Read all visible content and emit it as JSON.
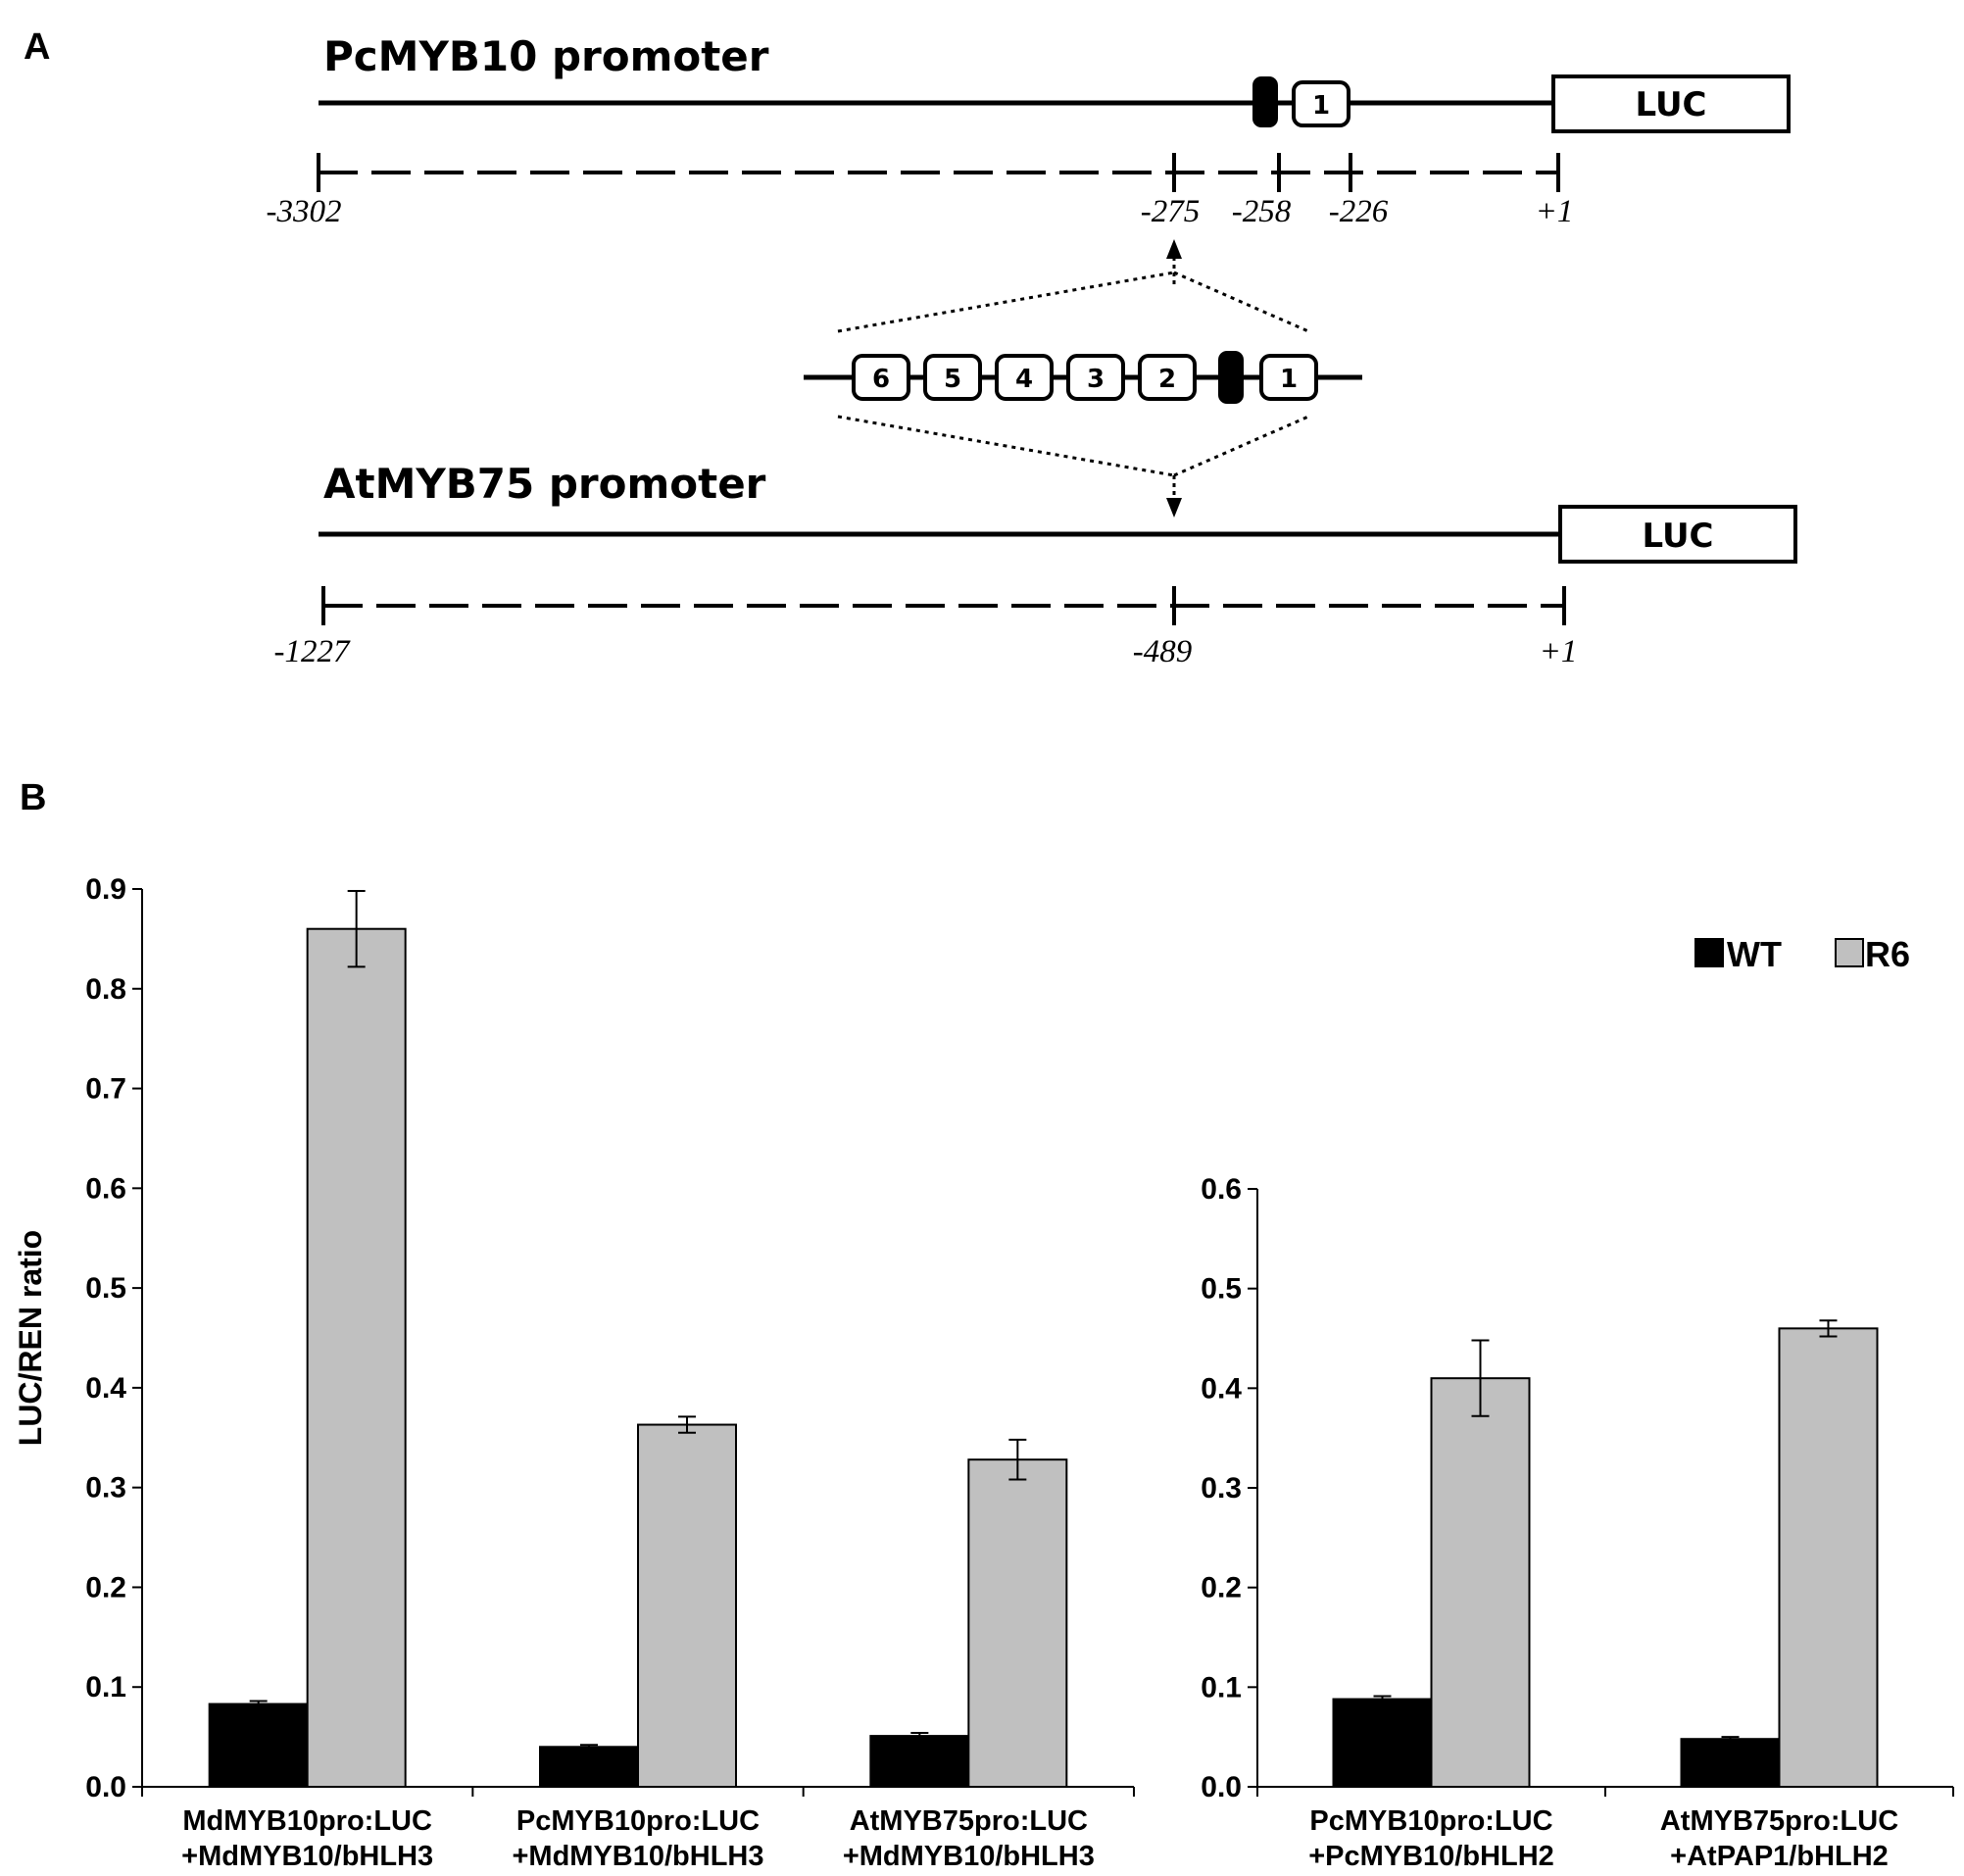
{
  "panel_a": {
    "label": "A",
    "pc": {
      "title": "PcMYB10 promoter",
      "luc": "LUC",
      "box_1": "1",
      "coords": [
        "-3302",
        "-275",
        "-258",
        "-226",
        "+1"
      ]
    },
    "insert": {
      "boxes": [
        "6",
        "5",
        "4",
        "3",
        "2",
        "1"
      ]
    },
    "at": {
      "title": "AtMYB75 promoter",
      "luc": "LUC",
      "coords": [
        "-1227",
        "-489",
        "+1"
      ]
    }
  },
  "panel_b": {
    "label": "B",
    "legend": {
      "wt": "WT",
      "r6": "R6"
    }
  },
  "colors": {
    "wt": "#000000",
    "r6": "#c0c0c0",
    "axis": "#000000"
  },
  "chart_data": [
    {
      "type": "bar",
      "ylabel": "LUC/REN ratio",
      "xlabel": "",
      "ylim": [
        0,
        0.9
      ],
      "yticks": [
        "0.0",
        "0.1",
        "0.2",
        "0.3",
        "0.4",
        "0.5",
        "0.6",
        "0.7",
        "0.8",
        "0.9"
      ],
      "categories": [
        [
          "MdMYB10pro:LUC",
          "+MdMYB10/bHLH3"
        ],
        [
          "PcMYB10pro:LUC",
          "+MdMYB10/bHLH3"
        ],
        [
          "AtMYB75pro:LUC",
          "+MdMYB10/bHLH3"
        ]
      ],
      "series": [
        {
          "name": "WT",
          "values": [
            0.083,
            0.04,
            0.051
          ],
          "errors": [
            0.003,
            0.002,
            0.003
          ]
        },
        {
          "name": "R6",
          "values": [
            0.86,
            0.363,
            0.328
          ],
          "errors": [
            0.038,
            0.008,
            0.02
          ]
        }
      ],
      "grid": false
    },
    {
      "type": "bar",
      "ylabel": "",
      "xlabel": "",
      "ylim": [
        0,
        0.6
      ],
      "yticks": [
        "0.0",
        "0.1",
        "0.2",
        "0.3",
        "0.4",
        "0.5",
        "0.6"
      ],
      "categories": [
        [
          "PcMYB10pro:LUC",
          "+PcMYB10/bHLH2"
        ],
        [
          "AtMYB75pro:LUC",
          "+AtPAP1/bHLH2"
        ]
      ],
      "series": [
        {
          "name": "WT",
          "values": [
            0.088,
            0.048
          ],
          "errors": [
            0.003,
            0.002
          ]
        },
        {
          "name": "R6",
          "values": [
            0.41,
            0.46
          ],
          "errors": [
            0.038,
            0.008
          ]
        }
      ],
      "grid": false,
      "legend": "top-right"
    }
  ]
}
